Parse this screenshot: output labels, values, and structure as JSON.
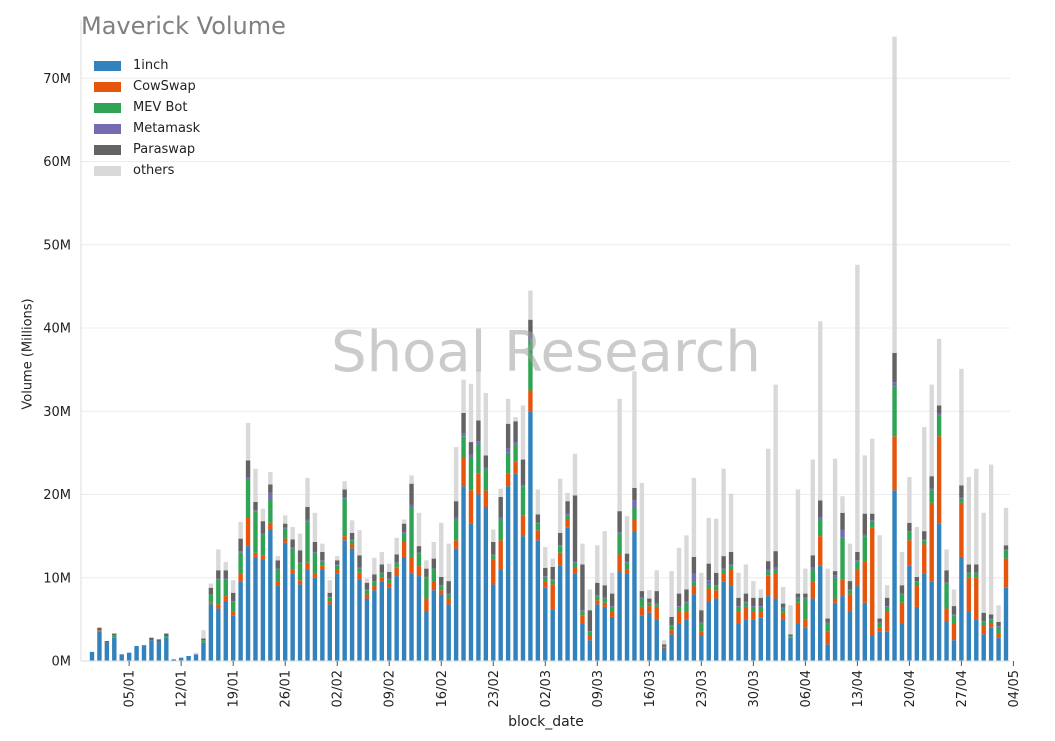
{
  "chart_data": {
    "type": "bar",
    "stacked": true,
    "title": "Maverick Volume",
    "xlabel": "block_date",
    "ylabel": "Volume (Millions)",
    "watermark": "Shoal Research",
    "legend_position": "top-left",
    "grid": "horizontal",
    "ylim": [
      0,
      77
    ],
    "y_ticks": [
      0,
      10,
      20,
      30,
      40,
      50,
      60,
      70
    ],
    "y_tick_labels": [
      "0M",
      "10M",
      "20M",
      "30M",
      "40M",
      "50M",
      "60M",
      "70M"
    ],
    "x_start": "2023-12-31",
    "x_tick_labels": [
      "05/01",
      "12/01",
      "19/01",
      "26/01",
      "02/02",
      "09/02",
      "16/02",
      "23/02",
      "02/03",
      "09/03",
      "16/03",
      "23/03",
      "30/03",
      "06/04",
      "13/04",
      "20/04",
      "27/04",
      "04/05"
    ],
    "x_tick_offsets": [
      5,
      12,
      19,
      26,
      33,
      40,
      47,
      54,
      61,
      68,
      75,
      82,
      89,
      96,
      103,
      110,
      117,
      124
    ],
    "series": [
      {
        "name": "1inch",
        "color": "#3182bd",
        "values": [
          1.1,
          3.5,
          2.2,
          2.8,
          0.8,
          1.0,
          1.8,
          1.9,
          2.5,
          2.4,
          2.8,
          0.2,
          0.4,
          0.6,
          0.8,
          2.2,
          6.8,
          6.3,
          7.2,
          5.5,
          9.5,
          13.8,
          12.5,
          12.2,
          15.8,
          9.0,
          14.2,
          10.5,
          9.2,
          11.0,
          10.0,
          11.0,
          6.8,
          10.5,
          14.5,
          13.5,
          9.8,
          7.5,
          8.5,
          9.5,
          8.8,
          10.2,
          12.5,
          10.5,
          10.2,
          6.0,
          8.5,
          8.0,
          6.8,
          13.5,
          21.0,
          16.5,
          20.0,
          18.5,
          9.2,
          11.0,
          21.0,
          22.5,
          15.0,
          30.0,
          14.5,
          8.8,
          6.2,
          11.5,
          16.0,
          10.5,
          4.5,
          2.5,
          6.8,
          6.5,
          5.3,
          10.8,
          10.5,
          15.5,
          5.5,
          5.8,
          5.0,
          1.5,
          3.2,
          4.5,
          5.0,
          8.0,
          3.0,
          7.2,
          7.5,
          9.5,
          9.0,
          4.5,
          5.0,
          5.0,
          5.2,
          7.8,
          7.5,
          5.0,
          2.8,
          4.5,
          4.0,
          7.5,
          11.5,
          2.0,
          7.0,
          7.8,
          6.0,
          9.0,
          7.0,
          3.0,
          3.5,
          3.5,
          20.5,
          4.5,
          11.5,
          6.5,
          10.5,
          9.5,
          16.5,
          4.8,
          2.5,
          12.5,
          6.0,
          5.0,
          3.2,
          4.0,
          2.8,
          8.8
        ]
      },
      {
        "name": "CowSwap",
        "color": "#e6550d",
        "values": [
          0.0,
          0.2,
          0.0,
          0.0,
          0.0,
          0.0,
          0.0,
          0.0,
          0.0,
          0.0,
          0.0,
          0.0,
          0.0,
          0.0,
          0.0,
          0.0,
          0.2,
          0.5,
          0.6,
          0.4,
          1.0,
          3.5,
          0.5,
          0.5,
          0.8,
          0.5,
          0.5,
          0.5,
          0.5,
          0.8,
          0.5,
          0.5,
          0.3,
          0.5,
          0.5,
          0.5,
          0.8,
          0.5,
          0.5,
          0.5,
          0.5,
          1.0,
          1.8,
          2.0,
          1.2,
          1.5,
          1.0,
          0.5,
          0.7,
          1.0,
          3.5,
          4.0,
          2.5,
          2.0,
          3.0,
          3.5,
          1.5,
          1.5,
          2.5,
          2.5,
          1.2,
          0.8,
          3.0,
          1.5,
          1.0,
          0.8,
          1.0,
          0.5,
          0.5,
          0.5,
          0.7,
          2.0,
          0.5,
          1.5,
          1.0,
          0.8,
          1.5,
          0.1,
          0.5,
          1.5,
          1.0,
          1.0,
          0.5,
          1.5,
          1.0,
          1.0,
          2.0,
          1.5,
          1.5,
          1.0,
          0.8,
          2.5,
          3.0,
          0.8,
          0.1,
          2.5,
          1.0,
          2.0,
          3.5,
          1.5,
          0.5,
          2.0,
          2.0,
          2.0,
          5.0,
          13.0,
          0.5,
          2.5,
          6.5,
          2.5,
          3.0,
          2.5,
          3.5,
          9.5,
          10.5,
          1.5,
          2.0,
          6.5,
          4.0,
          5.0,
          1.0,
          0.5,
          0.5,
          3.5
        ]
      },
      {
        "name": "MEV Bot",
        "color": "#31a354",
        "values": [
          0.0,
          0.0,
          0.0,
          0.3,
          0.0,
          0.0,
          0.0,
          0.0,
          0.0,
          0.0,
          0.2,
          0.0,
          0.0,
          0.0,
          0.0,
          0.3,
          1.0,
          3.0,
          2.0,
          1.2,
          2.5,
          4.5,
          5.0,
          2.5,
          2.8,
          1.5,
          1.2,
          2.5,
          2.0,
          5.0,
          2.5,
          0.5,
          0.5,
          0.5,
          4.5,
          0.5,
          0.5,
          0.5,
          0.5,
          0.5,
          0.5,
          0.5,
          1.0,
          6.0,
          1.5,
          2.5,
          1.5,
          0.5,
          0.5,
          2.5,
          2.5,
          4.0,
          3.5,
          2.5,
          0.5,
          2.5,
          2.5,
          2.0,
          3.5,
          6.0,
          0.8,
          0.5,
          0.5,
          0.8,
          0.5,
          0.5,
          0.5,
          0.5,
          0.5,
          0.5,
          0.5,
          2.5,
          0.8,
          1.5,
          1.0,
          0.3,
          0.3,
          0.1,
          0.5,
          0.5,
          1.0,
          0.5,
          1.0,
          0.5,
          0.5,
          0.5,
          0.5,
          0.5,
          0.5,
          0.5,
          0.5,
          0.5,
          0.5,
          0.5,
          0.1,
          0.5,
          2.5,
          1.5,
          2.0,
          1.0,
          2.5,
          5.0,
          0.5,
          1.0,
          3.0,
          0.8,
          0.5,
          0.5,
          6.0,
          1.0,
          1.0,
          0.5,
          0.5,
          1.5,
          2.5,
          3.0,
          1.0,
          0.5,
          0.5,
          0.5,
          0.5,
          0.5,
          0.8,
          1.0
        ]
      },
      {
        "name": "Metamask",
        "color": "#756bb1",
        "values": [
          0.0,
          0.0,
          0.0,
          0.0,
          0.0,
          0.0,
          0.0,
          0.0,
          0.0,
          0.0,
          0.0,
          0.0,
          0.0,
          0.0,
          0.0,
          0.0,
          0.0,
          0.1,
          0.1,
          0.1,
          0.2,
          0.3,
          0.1,
          0.1,
          0.8,
          0.1,
          0.1,
          0.1,
          0.1,
          0.2,
          0.1,
          0.1,
          0.1,
          0.1,
          0.1,
          0.1,
          0.1,
          0.1,
          0.1,
          0.1,
          0.1,
          0.1,
          0.2,
          0.3,
          0.1,
          0.1,
          0.1,
          0.1,
          0.1,
          0.2,
          0.3,
          0.3,
          0.4,
          0.2,
          0.1,
          0.2,
          0.5,
          0.3,
          0.2,
          0.3,
          0.1,
          0.1,
          0.1,
          0.1,
          0.2,
          0.1,
          0.1,
          0.1,
          0.1,
          0.1,
          0.1,
          0.2,
          0.1,
          0.8,
          0.1,
          0.1,
          0.1,
          0.0,
          0.1,
          0.1,
          0.1,
          1.0,
          0.1,
          0.5,
          0.1,
          0.1,
          0.1,
          0.1,
          0.1,
          0.1,
          0.1,
          0.2,
          0.2,
          0.1,
          0.0,
          0.1,
          0.1,
          0.2,
          0.3,
          0.1,
          0.3,
          1.0,
          0.1,
          0.1,
          0.2,
          0.1,
          0.1,
          0.1,
          0.5,
          0.1,
          0.1,
          0.1,
          0.1,
          0.2,
          0.2,
          0.1,
          0.1,
          0.1,
          0.1,
          0.1,
          0.1,
          0.1,
          0.1,
          0.1
        ]
      },
      {
        "name": "Paraswap",
        "color": "#636363",
        "values": [
          0.0,
          0.3,
          0.2,
          0.2,
          0.0,
          0.0,
          0.0,
          0.0,
          0.3,
          0.2,
          0.3,
          0.0,
          0.0,
          0.0,
          0.0,
          0.2,
          0.8,
          1.0,
          1.0,
          1.0,
          1.5,
          2.0,
          1.0,
          1.5,
          1.0,
          1.0,
          0.5,
          1.0,
          1.5,
          1.5,
          1.2,
          1.0,
          0.5,
          0.5,
          1.0,
          0.8,
          1.5,
          0.8,
          0.8,
          1.0,
          0.8,
          1.0,
          1.0,
          2.5,
          0.8,
          1.0,
          1.2,
          1.0,
          1.5,
          2.0,
          2.5,
          1.5,
          2.5,
          1.5,
          1.5,
          2.5,
          3.0,
          2.5,
          3.0,
          2.2,
          1.0,
          1.0,
          1.5,
          1.5,
          1.5,
          8.0,
          5.5,
          2.5,
          1.5,
          1.5,
          1.5,
          2.5,
          1.0,
          1.5,
          0.8,
          0.5,
          1.5,
          0.3,
          1.0,
          1.5,
          1.5,
          2.0,
          1.5,
          2.0,
          1.5,
          1.5,
          1.5,
          1.0,
          1.0,
          1.0,
          1.0,
          1.0,
          2.0,
          0.5,
          0.2,
          0.5,
          0.5,
          1.5,
          2.0,
          0.5,
          0.5,
          2.0,
          1.0,
          1.0,
          2.5,
          0.8,
          0.5,
          1.0,
          3.5,
          1.0,
          1.0,
          0.5,
          1.0,
          1.5,
          1.0,
          1.5,
          1.0,
          1.5,
          1.0,
          1.0,
          1.0,
          0.5,
          0.5,
          0.5
        ]
      },
      {
        "name": "others",
        "color": "#d9d9d9",
        "values": [
          0.0,
          0.0,
          0.0,
          0.0,
          0.0,
          0.0,
          0.0,
          0.0,
          0.0,
          0.0,
          0.0,
          0.0,
          0.0,
          0.0,
          0.2,
          1.0,
          0.5,
          2.5,
          1.0,
          1.5,
          2.0,
          4.5,
          4.0,
          1.5,
          1.5,
          0.5,
          1.0,
          1.5,
          2.0,
          3.5,
          3.5,
          1.0,
          1.5,
          0.5,
          1.0,
          1.5,
          3.0,
          0.5,
          2.0,
          1.5,
          1.0,
          2.0,
          0.5,
          1.0,
          4.0,
          1.0,
          2.0,
          6.5,
          4.5,
          6.5,
          4.0,
          7.0,
          6.0,
          7.5,
          1.5,
          1.0,
          3.0,
          0.5,
          6.5,
          3.5,
          3.0,
          2.5,
          1.0,
          6.5,
          1.0,
          5.0,
          2.5,
          2.5,
          4.5,
          6.5,
          2.5,
          13.5,
          4.5,
          14.0,
          13.0,
          1.0,
          2.5,
          0.5,
          5.5,
          5.5,
          6.5,
          9.5,
          4.5,
          5.5,
          6.5,
          10.5,
          7.0,
          3.0,
          3.5,
          2.0,
          1.0,
          13.5,
          20.0,
          2.0,
          3.5,
          12.5,
          3.0,
          11.5,
          21.5,
          6.0,
          13.5,
          2.0,
          4.5,
          34.5,
          7.0,
          9.0,
          10.0,
          1.5,
          38.0,
          4.0,
          5.5,
          6.0,
          12.5,
          11.0,
          8.0,
          2.5,
          2.0,
          14.0,
          10.5,
          11.5,
          12.0,
          18.0,
          2.0,
          4.5
        ]
      }
    ]
  }
}
